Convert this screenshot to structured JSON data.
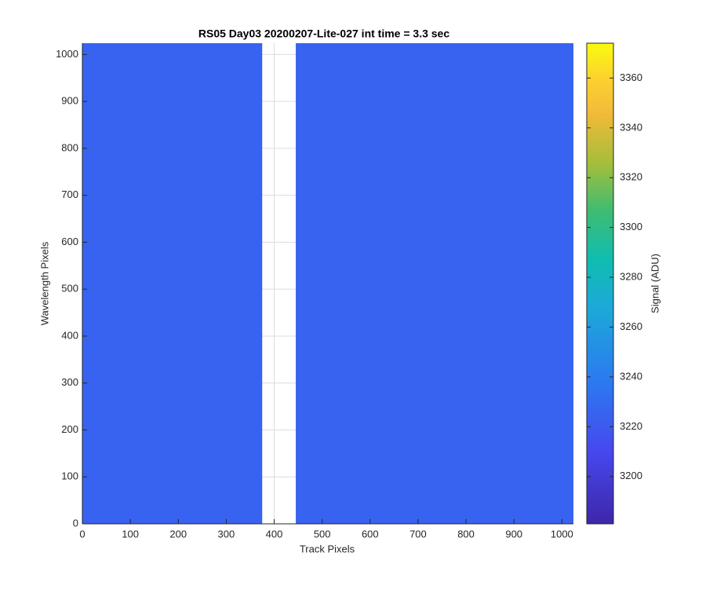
{
  "chart_data": {
    "type": "heatmap",
    "title": "RS05 Day03 20200207-Lite-027 int time = 3.3 sec",
    "x_label": "Track Pixels",
    "y_label": "Wavelength Pixels",
    "colorbar_label": "Signal (ADU)",
    "x_edges": [
      0,
      375,
      445,
      1024
    ],
    "y_edges": [
      0,
      1024
    ],
    "values": [
      [
        3225,
        null,
        3225
      ]
    ],
    "xlim": [
      0,
      1024
    ],
    "ylim": [
      0,
      1024
    ],
    "xticks": [
      0,
      100,
      200,
      300,
      400,
      500,
      600,
      700,
      800,
      900,
      1000
    ],
    "yticks": [
      0,
      100,
      200,
      300,
      400,
      500,
      600,
      700,
      800,
      900,
      1000
    ],
    "clim": [
      3181,
      3374
    ],
    "cticks": [
      3200,
      3220,
      3240,
      3260,
      3280,
      3300,
      3320,
      3340,
      3360
    ],
    "colormap": [
      [
        0,
        "#3e26a8"
      ],
      [
        0.15,
        "#4648ef"
      ],
      [
        0.3,
        "#2b7bf0"
      ],
      [
        0.45,
        "#1ca9d8"
      ],
      [
        0.55,
        "#10bdb0"
      ],
      [
        0.65,
        "#3ebc73"
      ],
      [
        0.75,
        "#a4be3a"
      ],
      [
        0.85,
        "#f0ba39"
      ],
      [
        0.92,
        "#fccf30"
      ],
      [
        1,
        "#f9fb0e"
      ]
    ],
    "grid": true
  }
}
